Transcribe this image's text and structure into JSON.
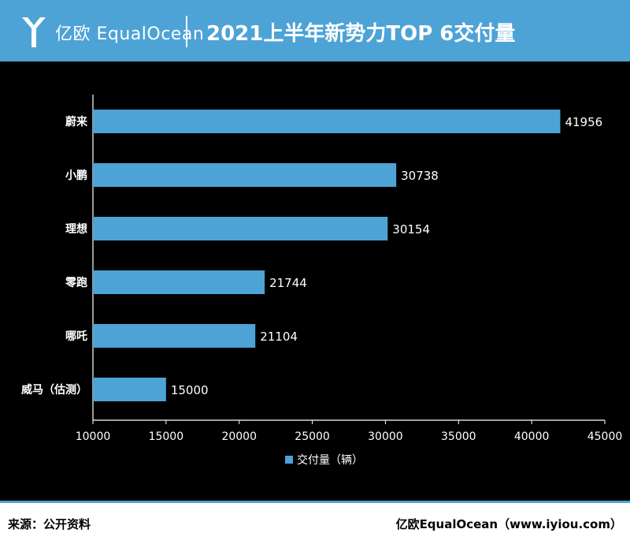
{
  "header": {
    "logo_text": "亿欧 EqualOcean",
    "title": "2021上半年新势力TOP 6交付量"
  },
  "chart_data": {
    "type": "bar",
    "orientation": "horizontal",
    "categories": [
      "蔚来",
      "小鹏",
      "理想",
      "零跑",
      "哪吒",
      "威马（估测）"
    ],
    "series": [
      {
        "name": "交付量（辆）",
        "values": [
          41956,
          30738,
          30154,
          21744,
          21104,
          15000
        ]
      }
    ],
    "xlim": [
      10000,
      45000
    ],
    "x_ticks": [
      10000,
      15000,
      20000,
      25000,
      30000,
      35000,
      40000,
      45000
    ],
    "grid": false,
    "legend_position": "bottom",
    "bar_color": "#4da3d6"
  },
  "footer": {
    "source": "来源：公开资料",
    "brand": "亿欧EqualOcean（www.iyiou.com）"
  }
}
